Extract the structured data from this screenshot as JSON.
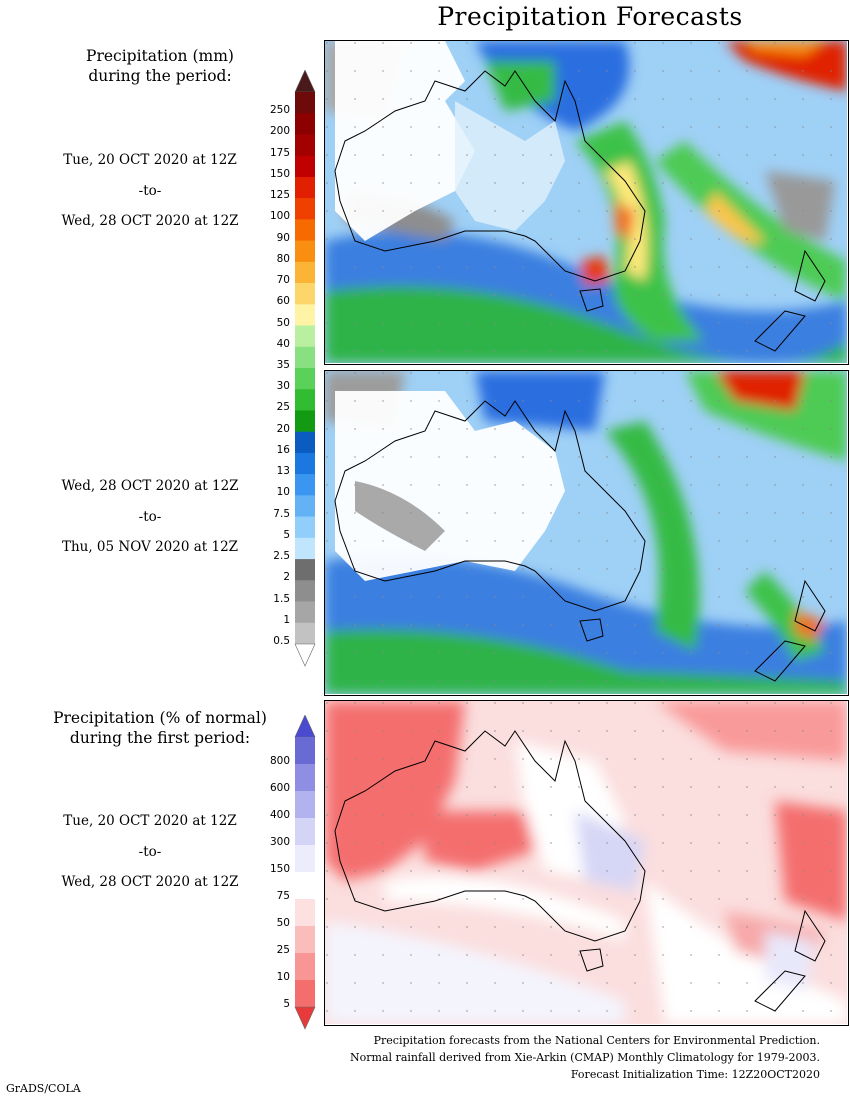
{
  "title": "Precipitation Forecasts",
  "left_panel_1": {
    "heading_line1": "Precipitation (mm)",
    "heading_line2": "during the period:"
  },
  "period_1": {
    "start": "Tue, 20 OCT 2020 at 12Z",
    "sep": "-to-",
    "end": "Wed, 28 OCT 2020 at 12Z"
  },
  "period_2": {
    "start": "Wed, 28 OCT 2020 at 12Z",
    "sep": "-to-",
    "end": "Thu, 05 NOV 2020 at 12Z"
  },
  "left_panel_2": {
    "heading_line1": "Precipitation (% of normal)",
    "heading_line2": "during the first period:"
  },
  "period_3": {
    "start": "Tue, 20 OCT 2020 at 12Z",
    "sep": "-to-",
    "end": "Wed, 28 OCT 2020 at 12Z"
  },
  "precip_scale": {
    "labels": [
      "250",
      "200",
      "175",
      "150",
      "125",
      "100",
      "90",
      "80",
      "70",
      "60",
      "50",
      "40",
      "35",
      "30",
      "25",
      "20",
      "16",
      "13",
      "10",
      "7.5",
      "5",
      "2.5",
      "2",
      "1.5",
      "1",
      "0.5"
    ],
    "colors": [
      "#6e0a0a",
      "#8c0000",
      "#a30000",
      "#c00000",
      "#e02000",
      "#f04000",
      "#f66a00",
      "#f98e10",
      "#fbb435",
      "#fdd66b",
      "#fff3a6",
      "#b8f0a0",
      "#88e080",
      "#5ad25a",
      "#32bc32",
      "#129a12",
      "#0b5cc0",
      "#1a78e0",
      "#3a96f0",
      "#64b2f6",
      "#92cefa",
      "#bfe6fc",
      "#6e6e6e",
      "#8e8e8e",
      "#a6a6a6",
      "#c2c2c2"
    ],
    "top_arrow_color": "#4a1a1a",
    "bottom_arrow_color": "#ffffff"
  },
  "anomaly_scale": {
    "labels": [
      "800",
      "600",
      "400",
      "300",
      "150",
      "75",
      "50",
      "25",
      "10",
      "5"
    ],
    "colors": [
      "#6a6ad4",
      "#8e8ee2",
      "#b2b2ee",
      "#d4d4f6",
      "#ececfc",
      "#ffffff",
      "#fde0e0",
      "#fbbcbc",
      "#f89696",
      "#f46e6e"
    ],
    "top_arrow_color": "#4a4ad0",
    "bottom_arrow_color": "#e83a3a"
  },
  "footer": {
    "line1": "Precipitation forecasts from the National Centers for Environmental Prediction.",
    "line2": "Normal rainfall derived from Xie-Arkin (CMAP) Monthly Climatology for 1979-2003.",
    "line3": "Forecast Initialization Time: 12Z20OCT2020"
  },
  "credit": "GrADS/COLA"
}
